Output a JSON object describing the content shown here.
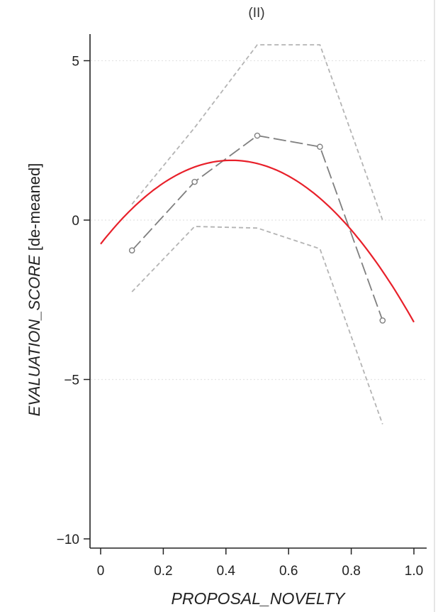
{
  "chart_data": {
    "type": "line",
    "title": "(II)",
    "xlabel": "PROPOSAL_NOVELTY",
    "ylabel_italic": "EVALUATION_SCORE",
    "ylabel_suffix": " [de-meaned]",
    "xlim": [
      0,
      1.0
    ],
    "ylim": [
      -10,
      5.8
    ],
    "x_ticks": [
      0,
      0.2,
      0.4,
      0.6,
      0.8,
      1.0
    ],
    "x_tick_labels": [
      "0",
      "0.2",
      "0.4",
      "0.6",
      "0.8",
      "1.0"
    ],
    "y_ticks": [
      5,
      0,
      -5,
      -10
    ],
    "y_tick_labels": [
      "5",
      "0",
      "−5",
      "−10"
    ],
    "grid": "horizontal-dotted",
    "series": [
      {
        "style": "dashed-markers",
        "color": "#7f7f7f",
        "x": [
          0.1,
          0.3,
          0.5,
          0.7,
          0.9
        ],
        "y": [
          -0.95,
          1.2,
          2.65,
          2.3,
          -3.15
        ]
      },
      {
        "style": "dotted",
        "color": "#b4b4b4",
        "x": [
          0.1,
          0.3,
          0.5,
          0.7,
          0.9
        ],
        "y": [
          0.5,
          2.9,
          5.5,
          5.5,
          0.0
        ]
      },
      {
        "style": "dotted",
        "color": "#b4b4b4",
        "x": [
          0.1,
          0.3,
          0.5,
          0.7,
          0.9
        ],
        "y": [
          -2.25,
          -0.2,
          -0.25,
          -0.9,
          -6.4
        ]
      },
      {
        "style": "quadratic-fit",
        "color": "#e8202a",
        "coefficients": {
          "a": -15.0,
          "b": 12.55,
          "c": -0.75
        },
        "x_range": [
          0,
          1.0
        ]
      }
    ]
  }
}
